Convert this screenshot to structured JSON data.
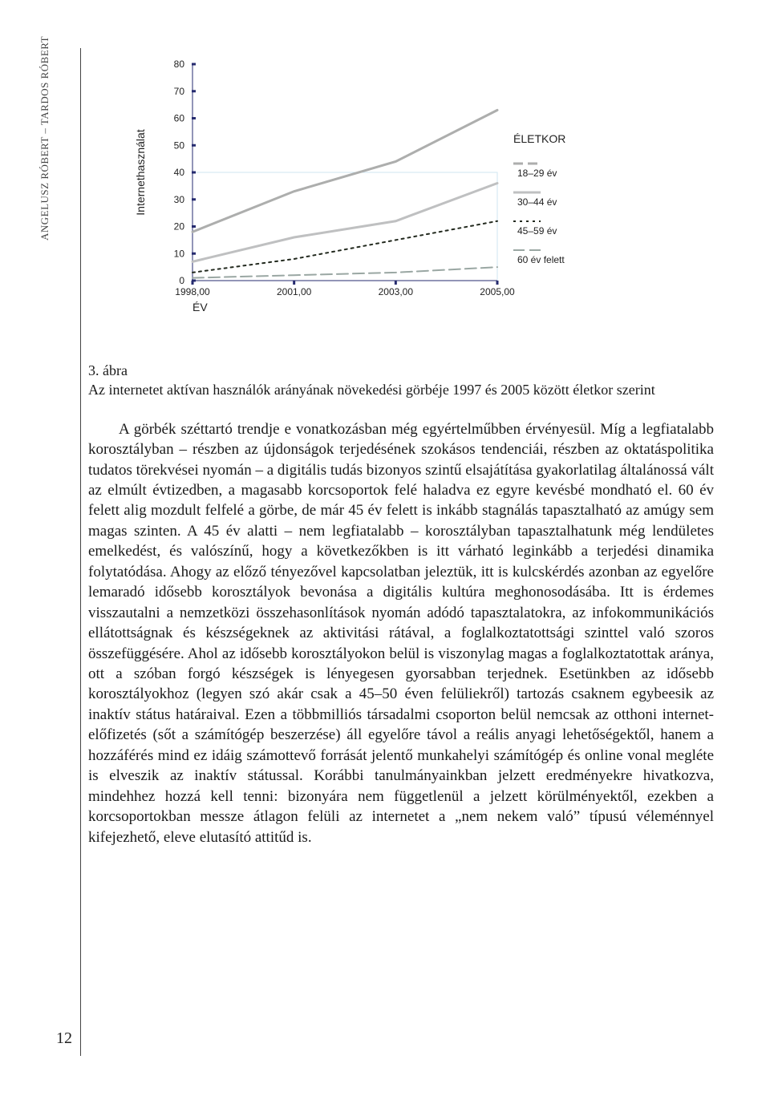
{
  "page": {
    "number": "12",
    "side_author": "ANGELUSZ RÓBERT – TARDOS RÓBERT"
  },
  "chart": {
    "type": "line",
    "x_categories": [
      "1998,00",
      "2001,00",
      "2003,00",
      "2005,00"
    ],
    "x_label": "ÉV",
    "y_label": "Internethasználat",
    "ylim": [
      0,
      80
    ],
    "ytick_step": 10,
    "y_ticks": [
      "0",
      "10",
      "20",
      "30",
      "40",
      "50",
      "60",
      "70",
      "80"
    ],
    "legend_title": "ÉLETKOR",
    "background_color": "#ffffff",
    "frame_color": "#cfe6f2",
    "frame_y": 40,
    "axis_color": "#262b6f",
    "tick_color": "#262b6f",
    "label_fontsize": 12,
    "axis_label_fontsize": 14,
    "legend_fontsize": 12,
    "series": [
      {
        "name": "18–29 év",
        "label": "18–29 év",
        "values": [
          18,
          33,
          44,
          63
        ],
        "color": "#adaead",
        "width": 3,
        "dash": "",
        "legend_dash": "12,6"
      },
      {
        "name": "30–44 év",
        "label": "30–44 év",
        "values": [
          7,
          16,
          22,
          36
        ],
        "color": "#bfc0c1",
        "width": 3,
        "dash": "",
        "legend_dash": ""
      },
      {
        "name": "45–59 év",
        "label": "45–59 év",
        "values": [
          3,
          8,
          15,
          22
        ],
        "color": "#232a1f",
        "width": 2,
        "dash": "3,5",
        "legend_dash": "3,5"
      },
      {
        "name": "60 év felett",
        "label": "60 év felett",
        "values": [
          1,
          2,
          3,
          5
        ],
        "color": "#9aa7a3",
        "width": 2,
        "dash": "14,6",
        "legend_dash": "14,6"
      }
    ]
  },
  "caption": {
    "number": "3. ábra",
    "text": "Az internetet aktívan használók arányának növekedési görbéje 1997 és 2005 között életkor szerint"
  },
  "body": {
    "paragraph": "A görbék széttartó trendje e vonatkozásban még egyértelműbben érvényesül. Míg a legfiatalabb korosztályban – részben az újdonságok terjedésének szokásos tendenciái, részben az oktatáspolitika tudatos törekvései nyomán – a digitális tudás bizonyos szintű elsajátítása gyakorlatilag általánossá vált az elmúlt évtizedben, a magasabb korcsoportok felé haladva ez egyre kevésbé mondható el. 60 év felett alig mozdult felfelé a görbe, de már 45 év felett is inkább stagnálás tapasztalható az amúgy sem magas szinten. A 45 év alatti – nem legfiatalabb – korosztályban tapasztalhatunk még lendületes emelkedést, és valószínű, hogy a következőkben is itt várható leginkább a terjedési dinamika folytatódása. Ahogy az előző tényezővel kapcsolatban jeleztük, itt is kulcskérdés azonban az egyelőre lemaradó idősebb korosztályok bevonása a digitális kultúra meghonosodásába. Itt is érdemes visszautalni a nemzetközi összehasonlítások nyomán adódó tapasztalatokra, az infokommunikációs ellátottságnak és készségeknek az aktivitási rátával, a foglalkoztatottsági szinttel való szoros összefüggésére. Ahol az idősebb korosztályokon belül is viszonylag magas a foglalkoztatottak aránya, ott a szóban forgó készségek is lényegesen gyorsabban terjednek. Esetünkben az idősebb korosztályokhoz (legyen szó akár csak a 45–50 éven felüliekről) tartozás csaknem egybeesik az inaktív státus határaival. Ezen a többmilliós társadalmi csoporton belül nemcsak az otthoni internet-előfizetés (sőt a számítógép beszerzése) áll egyelőre távol a reális anyagi lehetőségektől, hanem a hozzáférés mind ez idáig számottevő forrását jelentő munkahelyi számítógép és online vonal megléte is elveszik az inaktív státussal. Korábbi tanulmányainkban jelzett eredményekre hivatkozva, mindehhez hozzá kell tenni: bizonyára nem függetlenül a jelzett körülményektől, ezekben a korcsoportokban messze átlagon felüli az internetet a „nem nekem való” típusú véleménnyel kifejezhető, eleve elutasító attitűd is."
  }
}
